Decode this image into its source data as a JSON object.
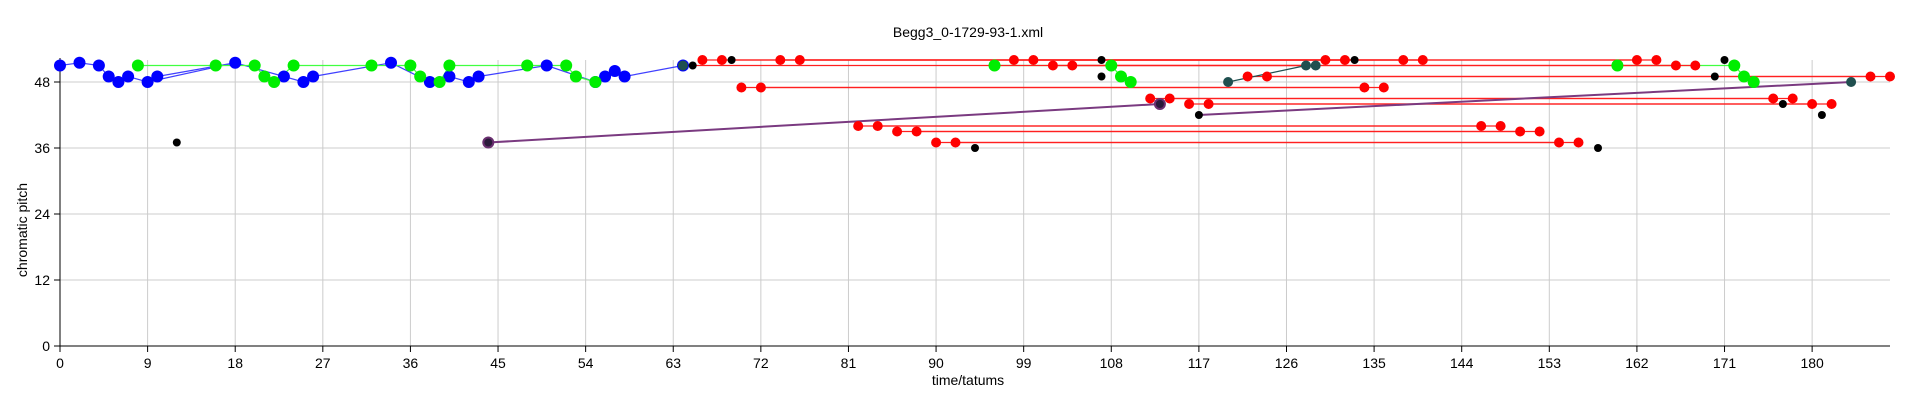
{
  "chart_data": {
    "type": "scatter",
    "title": "Begg3_0-1729-93-1.xml",
    "xlabel": "time/tatums",
    "ylabel": "chromatic pitch",
    "xlim": [
      0,
      188
    ],
    "ylim": [
      0,
      52
    ],
    "xticks": [
      "0",
      "9",
      "18",
      "27",
      "36",
      "45",
      "54",
      "63",
      "72",
      "81",
      "90",
      "99",
      "108",
      "117",
      "126",
      "135",
      "144",
      "153",
      "162",
      "171",
      "180"
    ],
    "yticks": [
      "0",
      "12",
      "24",
      "36",
      "48"
    ],
    "grid": true,
    "legend": "none",
    "colors": {
      "blue": "#0000ff",
      "green": "#00ee00",
      "red": "#ff0000",
      "black": "#000000",
      "teal": "#1f4f4f",
      "purple": "#6a2f70",
      "blue_line": "#4040ff",
      "green_line": "#40ff40",
      "red_line": "#ff2020",
      "purple_line": "#7a3a80"
    },
    "series": [
      {
        "color": "blue",
        "points": [
          [
            0,
            51
          ],
          [
            2,
            51.5
          ],
          [
            4,
            51
          ],
          [
            5,
            49
          ],
          [
            6,
            48
          ],
          [
            7,
            49
          ],
          [
            9,
            48
          ],
          [
            10,
            49
          ],
          [
            18,
            51.5
          ],
          [
            23,
            49
          ],
          [
            25,
            48
          ],
          [
            26,
            49
          ],
          [
            34,
            51.5
          ],
          [
            38,
            48
          ],
          [
            40,
            49
          ],
          [
            42,
            48
          ],
          [
            43,
            49
          ],
          [
            50,
            51
          ],
          [
            55,
            48
          ],
          [
            56,
            49
          ],
          [
            57,
            50
          ],
          [
            58,
            49
          ],
          [
            64,
            51
          ]
        ]
      },
      {
        "color": "green",
        "points": [
          [
            8,
            51
          ],
          [
            16,
            51
          ],
          [
            20,
            51
          ],
          [
            21,
            49
          ],
          [
            22,
            48
          ],
          [
            24,
            51
          ],
          [
            32,
            51
          ],
          [
            36,
            51
          ],
          [
            37,
            49
          ],
          [
            39,
            48
          ],
          [
            40,
            51
          ],
          [
            48,
            51
          ],
          [
            52,
            51
          ],
          [
            53,
            49
          ],
          [
            55,
            48
          ],
          [
            96,
            51
          ],
          [
            108,
            51
          ],
          [
            109,
            49
          ],
          [
            110,
            48
          ],
          [
            160,
            51
          ],
          [
            172,
            51
          ],
          [
            173,
            49
          ],
          [
            174,
            48
          ]
        ]
      },
      {
        "color": "red",
        "points": [
          [
            66,
            52
          ],
          [
            68,
            52
          ],
          [
            74,
            52
          ],
          [
            76,
            52
          ],
          [
            98,
            52
          ],
          [
            100,
            52
          ],
          [
            102,
            51
          ],
          [
            104,
            51
          ],
          [
            130,
            52
          ],
          [
            132,
            52
          ],
          [
            138,
            52
          ],
          [
            140,
            52
          ],
          [
            162,
            52
          ],
          [
            164,
            52
          ],
          [
            166,
            51
          ],
          [
            168,
            51
          ],
          [
            70,
            47
          ],
          [
            72,
            47
          ],
          [
            122,
            49
          ],
          [
            124,
            49
          ],
          [
            134,
            47
          ],
          [
            136,
            47
          ],
          [
            186,
            49
          ],
          [
            188,
            49
          ],
          [
            112,
            45
          ],
          [
            114,
            45
          ],
          [
            116,
            44
          ],
          [
            118,
            44
          ],
          [
            176,
            45
          ],
          [
            178,
            45
          ],
          [
            180,
            44
          ],
          [
            182,
            44
          ],
          [
            82,
            40
          ],
          [
            84,
            40
          ],
          [
            86,
            39
          ],
          [
            88,
            39
          ],
          [
            146,
            40
          ],
          [
            148,
            40
          ],
          [
            150,
            39
          ],
          [
            152,
            39
          ],
          [
            90,
            37
          ],
          [
            92,
            37
          ],
          [
            154,
            37
          ],
          [
            156,
            37
          ]
        ]
      },
      {
        "color": "black",
        "points": [
          [
            12,
            37
          ],
          [
            65,
            51
          ],
          [
            69,
            52
          ],
          [
            107,
            49
          ],
          [
            107,
            52
          ],
          [
            133,
            52
          ],
          [
            170,
            49
          ],
          [
            171,
            52
          ],
          [
            113,
            44
          ],
          [
            117,
            42
          ],
          [
            177,
            44
          ],
          [
            181,
            42
          ],
          [
            94,
            36
          ],
          [
            158,
            36
          ]
        ]
      },
      {
        "color": "teal",
        "points": [
          [
            64,
            51
          ],
          [
            128,
            51
          ],
          [
            129,
            51
          ],
          [
            120,
            48
          ],
          [
            184,
            48
          ]
        ]
      },
      {
        "color": "purple",
        "points": [
          [
            44,
            37
          ],
          [
            113,
            44
          ]
        ]
      }
    ],
    "lines": [
      {
        "color": "blue_line",
        "points": [
          [
            0,
            51
          ],
          [
            2,
            51.5
          ],
          [
            4,
            51
          ],
          [
            5,
            49
          ],
          [
            6,
            48
          ],
          [
            7,
            49
          ],
          [
            9,
            48
          ],
          [
            10,
            49
          ],
          [
            18,
            51.5
          ],
          [
            23,
            49
          ],
          [
            25,
            48
          ],
          [
            26,
            49
          ],
          [
            34,
            51.5
          ],
          [
            38,
            48
          ],
          [
            40,
            49
          ],
          [
            42,
            48
          ],
          [
            43,
            49
          ],
          [
            50,
            51
          ],
          [
            55,
            48
          ],
          [
            56,
            49
          ],
          [
            57,
            50
          ],
          [
            58,
            49
          ],
          [
            64,
            51
          ]
        ]
      },
      {
        "color": "blue_line",
        "points": [
          [
            9,
            48
          ],
          [
            18,
            51.5
          ]
        ]
      },
      {
        "color": "green_line",
        "points": [
          [
            8,
            51
          ],
          [
            16,
            51
          ],
          [
            20,
            51
          ],
          [
            21,
            49
          ],
          [
            22,
            48
          ],
          [
            24,
            51
          ],
          [
            32,
            51
          ],
          [
            36,
            51
          ],
          [
            37,
            49
          ],
          [
            39,
            48
          ],
          [
            40,
            51
          ],
          [
            48,
            51
          ],
          [
            52,
            51
          ],
          [
            53,
            49
          ],
          [
            55,
            48
          ]
        ]
      },
      {
        "color": "green_line",
        "points": [
          [
            96,
            51
          ],
          [
            108,
            51
          ],
          [
            109,
            49
          ],
          [
            110,
            48
          ]
        ]
      },
      {
        "color": "green_line",
        "points": [
          [
            160,
            51
          ],
          [
            172,
            51
          ],
          [
            173,
            49
          ],
          [
            174,
            48
          ]
        ]
      },
      {
        "color": "red_line",
        "points": [
          [
            66,
            52
          ],
          [
            130,
            52
          ]
        ]
      },
      {
        "color": "red_line",
        "points": [
          [
            68,
            52
          ],
          [
            132,
            52
          ]
        ]
      },
      {
        "color": "red_line",
        "points": [
          [
            74,
            52
          ],
          [
            138,
            52
          ]
        ]
      },
      {
        "color": "red_line",
        "points": [
          [
            76,
            52
          ],
          [
            140,
            52
          ]
        ]
      },
      {
        "color": "red_line",
        "points": [
          [
            98,
            52
          ],
          [
            162,
            52
          ]
        ]
      },
      {
        "color": "red_line",
        "points": [
          [
            100,
            52
          ],
          [
            164,
            52
          ]
        ]
      },
      {
        "color": "red_line",
        "points": [
          [
            102,
            51
          ],
          [
            166,
            51
          ]
        ]
      },
      {
        "color": "red_line",
        "points": [
          [
            104,
            51
          ],
          [
            168,
            51
          ]
        ]
      },
      {
        "color": "red_line",
        "points": [
          [
            70,
            47
          ],
          [
            134,
            47
          ]
        ]
      },
      {
        "color": "red_line",
        "points": [
          [
            72,
            47
          ],
          [
            136,
            47
          ]
        ]
      },
      {
        "color": "red_line",
        "points": [
          [
            122,
            49
          ],
          [
            186,
            49
          ]
        ]
      },
      {
        "color": "red_line",
        "points": [
          [
            124,
            49
          ],
          [
            188,
            49
          ]
        ]
      },
      {
        "color": "red_line",
        "points": [
          [
            112,
            45
          ],
          [
            176,
            45
          ]
        ]
      },
      {
        "color": "red_line",
        "points": [
          [
            114,
            45
          ],
          [
            178,
            45
          ]
        ]
      },
      {
        "color": "red_line",
        "points": [
          [
            116,
            44
          ],
          [
            180,
            44
          ]
        ]
      },
      {
        "color": "red_line",
        "points": [
          [
            118,
            44
          ],
          [
            182,
            44
          ]
        ]
      },
      {
        "color": "red_line",
        "points": [
          [
            82,
            40
          ],
          [
            146,
            40
          ]
        ]
      },
      {
        "color": "red_line",
        "points": [
          [
            84,
            40
          ],
          [
            148,
            40
          ]
        ]
      },
      {
        "color": "red_line",
        "points": [
          [
            86,
            39
          ],
          [
            150,
            39
          ]
        ]
      },
      {
        "color": "red_line",
        "points": [
          [
            88,
            39
          ],
          [
            152,
            39
          ]
        ]
      },
      {
        "color": "red_line",
        "points": [
          [
            90,
            37
          ],
          [
            154,
            37
          ]
        ]
      },
      {
        "color": "red_line",
        "points": [
          [
            92,
            37
          ],
          [
            156,
            37
          ]
        ]
      },
      {
        "color": "red_line",
        "points": [
          [
            65,
            51
          ],
          [
            129,
            51
          ]
        ]
      },
      {
        "color": "purple_line",
        "points": [
          [
            44,
            37
          ],
          [
            113,
            44
          ]
        ]
      },
      {
        "color": "purple_line",
        "points": [
          [
            117,
            42
          ],
          [
            184,
            48
          ]
        ]
      },
      {
        "color": "teal",
        "points": [
          [
            120,
            48
          ],
          [
            128,
            51
          ]
        ]
      }
    ]
  }
}
